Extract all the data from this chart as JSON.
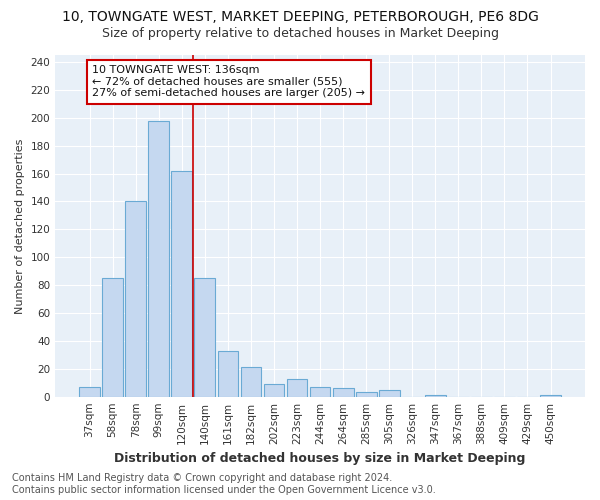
{
  "title": "10, TOWNGATE WEST, MARKET DEEPING, PETERBOROUGH, PE6 8DG",
  "subtitle": "Size of property relative to detached houses in Market Deeping",
  "xlabel": "Distribution of detached houses by size in Market Deeping",
  "ylabel": "Number of detached properties",
  "categories": [
    "37sqm",
    "58sqm",
    "78sqm",
    "99sqm",
    "120sqm",
    "140sqm",
    "161sqm",
    "182sqm",
    "202sqm",
    "223sqm",
    "244sqm",
    "264sqm",
    "285sqm",
    "305sqm",
    "326sqm",
    "347sqm",
    "367sqm",
    "388sqm",
    "409sqm",
    "429sqm",
    "450sqm"
  ],
  "values": [
    7,
    85,
    140,
    198,
    162,
    85,
    33,
    21,
    9,
    13,
    7,
    6,
    3,
    5,
    0,
    1,
    0,
    0,
    0,
    0,
    1
  ],
  "bar_color": "#c5d8f0",
  "bar_edge_color": "#6aaad4",
  "vline_x_index": 4.5,
  "vline_color": "#cc0000",
  "annotation_line1": "10 TOWNGATE WEST: 136sqm",
  "annotation_line2": "← 72% of detached houses are smaller (555)",
  "annotation_line3": "27% of semi-detached houses are larger (205) →",
  "annotation_box_color": "#ffffff",
  "annotation_box_edge_color": "#cc0000",
  "ylim": [
    0,
    245
  ],
  "yticks": [
    0,
    20,
    40,
    60,
    80,
    100,
    120,
    140,
    160,
    180,
    200,
    220,
    240
  ],
  "footer_text": "Contains HM Land Registry data © Crown copyright and database right 2024.\nContains public sector information licensed under the Open Government Licence v3.0.",
  "fig_background_color": "#ffffff",
  "plot_background_color": "#e8f0f8",
  "grid_color": "#ffffff",
  "title_fontsize": 10,
  "subtitle_fontsize": 9,
  "xlabel_fontsize": 9,
  "ylabel_fontsize": 8,
  "tick_fontsize": 7.5,
  "annotation_fontsize": 8,
  "footer_fontsize": 7
}
